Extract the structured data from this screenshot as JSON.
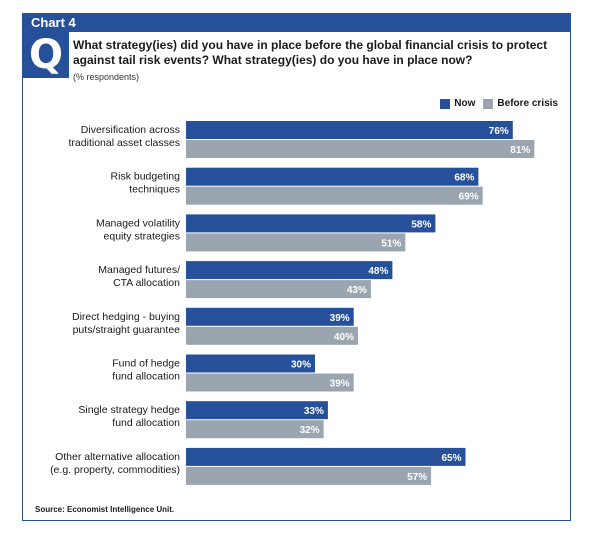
{
  "header": {
    "chart_label": "Chart 4",
    "q_mark": "Q",
    "question": "What strategy(ies) did you have in place before the global financial crisis to protect against tail risk events? What strategy(ies) do you have in place now?",
    "subtitle": "(% respondents)"
  },
  "colors": {
    "now": "#27509b",
    "before": "#9aa5b0",
    "accent": "#27509b"
  },
  "source": "Source: Economist Intelligence Unit.",
  "chart_data": {
    "type": "bar",
    "orientation": "horizontal",
    "categories": [
      [
        "Diversification across",
        "traditional asset classes"
      ],
      [
        "Risk budgeting",
        "techniques"
      ],
      [
        "Managed volatility",
        "equity strategies"
      ],
      [
        "Managed futures/",
        "CTA allocation"
      ],
      [
        "Direct hedging - buying",
        "puts/straight guarantee"
      ],
      [
        "Fund of hedge",
        "fund allocation"
      ],
      [
        "Single strategy hedge",
        "fund allocation"
      ],
      [
        "Other alternative allocation",
        "(e.g. property, commodities)"
      ]
    ],
    "series": [
      {
        "name": "Now",
        "values": [
          76,
          68,
          58,
          48,
          39,
          30,
          33,
          65
        ]
      },
      {
        "name": "Before crisis",
        "values": [
          81,
          69,
          51,
          43,
          40,
          39,
          32,
          57
        ]
      }
    ],
    "value_suffix": "%",
    "xlim": [
      0,
      100
    ],
    "legend_position": "top-right",
    "grid": false
  }
}
